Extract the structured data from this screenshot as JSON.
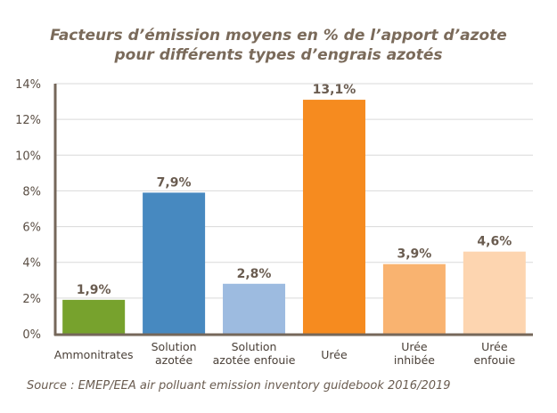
{
  "chart_data": {
    "type": "bar",
    "title": [
      "Facteurs d’émission moyens en % de l’apport d’azote",
      "pour différents types d’engrais azotés"
    ],
    "categories": [
      [
        "Ammonitrates"
      ],
      [
        "Solution",
        "azotée"
      ],
      [
        "Solution",
        "azotée enfouie"
      ],
      [
        "Urée"
      ],
      [
        "Urée",
        "inhibée"
      ],
      [
        "Urée",
        "enfouie"
      ]
    ],
    "values": [
      1.9,
      7.9,
      2.8,
      13.1,
      3.9,
      4.6
    ],
    "value_labels": [
      "1,9%",
      "7,9%",
      "2,8%",
      "13,1%",
      "3,9%",
      "4,6%"
    ],
    "colors": [
      "#77a22d",
      "#4789c0",
      "#9dbbe0",
      "#f68b1f",
      "#f9b370",
      "#fdd5b0"
    ],
    "yticks": [
      "0%",
      "2%",
      "4%",
      "6%",
      "8%",
      "10%",
      "12%",
      "14%"
    ],
    "ylim": [
      0,
      14
    ],
    "grid": true,
    "xlabel": "",
    "ylabel": ""
  },
  "source": "Source : EMEP/EEA air polluant emission inventory guidebook 2016/2019"
}
